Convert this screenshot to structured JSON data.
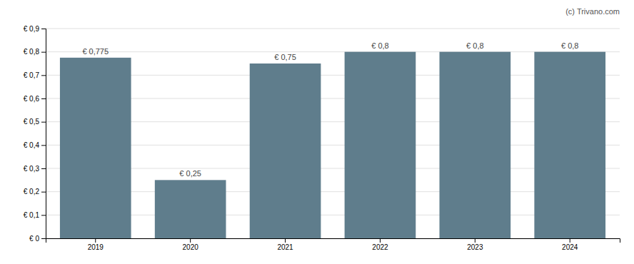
{
  "chart_data": {
    "type": "bar",
    "categories": [
      "2019",
      "2020",
      "2021",
      "2022",
      "2023",
      "2024"
    ],
    "values": [
      0.775,
      0.25,
      0.75,
      0.8,
      0.8,
      0.8
    ],
    "value_labels": [
      "€ 0,775",
      "€ 0,25",
      "€ 0,75",
      "€ 0,8",
      "€ 0,8",
      "€ 0,8"
    ],
    "data_labels": true,
    "color": "#5f7d8c",
    "ylim": [
      0,
      0.9
    ],
    "yticks": [
      {
        "value": 0,
        "label": "€ 0"
      },
      {
        "value": 0.1,
        "label": "€ 0,1"
      },
      {
        "value": 0.2,
        "label": "€ 0,2"
      },
      {
        "value": 0.3,
        "label": "€ 0,3"
      },
      {
        "value": 0.4,
        "label": "€ 0,4"
      },
      {
        "value": 0.5,
        "label": "€ 0,5"
      },
      {
        "value": 0.6,
        "label": "€ 0,6"
      },
      {
        "value": 0.7,
        "label": "€ 0,7"
      },
      {
        "value": 0.8,
        "label": "€ 0,8"
      },
      {
        "value": 0.9,
        "label": "€ 0,9"
      }
    ],
    "grid": true,
    "annotations": [
      "(c) Trivano.com"
    ]
  }
}
